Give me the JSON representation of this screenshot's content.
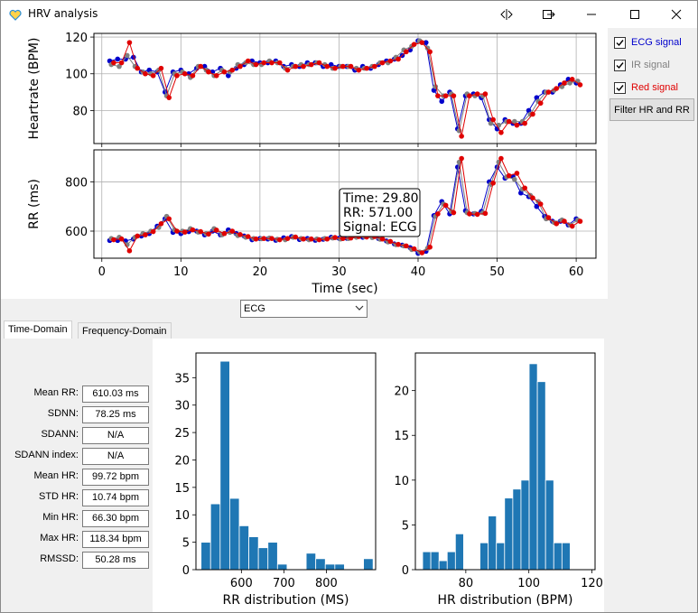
{
  "window": {
    "title": "HRV analysis"
  },
  "checkboxes": [
    {
      "label": "ECG signal",
      "checked": true,
      "color": "#0000cc"
    },
    {
      "label": "IR signal",
      "checked": true,
      "color": "#808080"
    },
    {
      "label": "Red signal",
      "checked": true,
      "color": "#e00000"
    }
  ],
  "filter_button": "Filter HR and RR",
  "signal_select": {
    "value": "ECG"
  },
  "tabs": [
    {
      "label": "Time-Domain",
      "active": true
    },
    {
      "label": "Frequency-Domain",
      "active": false
    }
  ],
  "stats": [
    {
      "label": "Mean RR:",
      "value": "610.03 ms"
    },
    {
      "label": "SDNN:",
      "value": "78.25 ms"
    },
    {
      "label": "SDANN:",
      "value": "N/A"
    },
    {
      "label": "SDANN index:",
      "value": "N/A"
    },
    {
      "label": "Mean HR:",
      "value": "99.72 bpm"
    },
    {
      "label": "STD HR:",
      "value": "10.74 bpm"
    },
    {
      "label": "Min HR:",
      "value": "66.30 bpm"
    },
    {
      "label": "Max HR:",
      "value": "118.34 bpm"
    },
    {
      "label": "RMSSD:",
      "value": "50.28 ms"
    }
  ],
  "tooltip": {
    "line1": "Time: 29.80",
    "line2": "RR: 571.00",
    "line3": "Signal: ECG"
  },
  "chart_data": [
    {
      "type": "scatter",
      "ylabel": "Heartrate (BPM)",
      "xlim": [
        -1,
        62.5
      ],
      "ylim": [
        62,
        122
      ],
      "yticks": [
        80,
        100,
        120
      ],
      "grid": true,
      "series": [
        {
          "name": "ECG signal",
          "color": "#0000cc",
          "x": [
            1,
            2,
            3,
            4,
            5,
            6,
            7,
            8,
            9,
            10,
            11,
            12,
            13,
            14,
            15,
            16,
            17,
            18,
            19,
            20,
            21,
            22,
            23,
            24,
            25,
            26,
            27,
            28,
            29,
            30,
            31,
            32,
            33,
            34,
            35,
            36,
            37,
            38,
            39,
            40,
            41,
            42,
            43,
            44,
            45,
            46,
            47,
            48,
            49,
            50,
            51,
            52,
            53,
            54,
            55,
            56,
            57,
            58,
            59,
            60
          ],
          "y": [
            107,
            108,
            108,
            109,
            101,
            102,
            101,
            90,
            101,
            102,
            100,
            103,
            104,
            101,
            103,
            99,
            103,
            105,
            107,
            106,
            106,
            107,
            104,
            105,
            104,
            106,
            106,
            104,
            105,
            104,
            104,
            102,
            104,
            103,
            105,
            107,
            108,
            110,
            113,
            118,
            117,
            91,
            85,
            90,
            70,
            88,
            89,
            87,
            75,
            70,
            75,
            73,
            73,
            80,
            87,
            90,
            90,
            94,
            97,
            95
          ]
        },
        {
          "name": "IR signal",
          "color": "#808080",
          "x": [
            1.2,
            2.2,
            3.2,
            4.2,
            5.2,
            6.2,
            7.2,
            8.2,
            9.2,
            10.2,
            11.2,
            12.2,
            13.2,
            14.2,
            15.2,
            16.2,
            17.2,
            18.2,
            19.2,
            20.2,
            21.2,
            22.2,
            23.2,
            24.2,
            25.2,
            26.2,
            27.2,
            28.2,
            29.2,
            30.2,
            31.2,
            32.2,
            33.2,
            34.2,
            35.2,
            36.2,
            37.2,
            38.2,
            39.2,
            40.2,
            41.2,
            42.2,
            43.2,
            44.2,
            45.2,
            46.2,
            47.2,
            48.2,
            49.2,
            50.2,
            51.2,
            52.2,
            53.2,
            54.2,
            55.2,
            56.2,
            57.2,
            58.2,
            59.2,
            60.2
          ],
          "y": [
            105,
            104,
            110,
            104,
            101,
            100,
            102,
            88,
            100,
            101,
            98,
            104,
            102,
            99,
            102,
            101,
            105,
            106,
            105,
            105,
            107,
            106,
            103,
            104,
            105,
            105,
            106,
            105,
            103,
            104,
            104,
            103,
            103,
            104,
            106,
            106,
            109,
            113,
            115,
            118,
            114,
            93,
            88,
            89,
            69,
            89,
            88,
            88,
            73,
            72,
            74,
            74,
            74,
            78,
            85,
            90,
            91,
            93,
            95,
            96
          ]
        },
        {
          "name": "Red signal",
          "color": "#e00000",
          "x": [
            1.5,
            2.5,
            3.5,
            4.5,
            5.5,
            6.5,
            7.5,
            8.5,
            9.5,
            10.5,
            11.5,
            12.5,
            13.5,
            14.5,
            15.5,
            16.5,
            17.5,
            18.5,
            19.5,
            20.5,
            21.5,
            22.5,
            23.5,
            24.5,
            25.5,
            26.5,
            27.5,
            28.5,
            29.5,
            30.5,
            31.5,
            32.5,
            33.5,
            34.5,
            35.5,
            36.5,
            37.5,
            38.5,
            39.5,
            40.5,
            41.5,
            42.5,
            43.5,
            44.5,
            45.5,
            46.5,
            47.5,
            48.5,
            49.5,
            50.5,
            51.5,
            52.5,
            53.5,
            54.5,
            55.5,
            56.5,
            57.5,
            58.5,
            59.5,
            60.5
          ],
          "y": [
            106,
            106,
            117,
            103,
            100,
            99,
            103,
            87,
            99,
            100,
            99,
            104,
            101,
            99,
            101,
            102,
            104,
            107,
            105,
            106,
            106,
            106,
            102,
            104,
            104,
            105,
            106,
            104,
            103,
            104,
            104,
            102,
            103,
            104,
            106,
            107,
            108,
            112,
            116,
            117,
            112,
            88,
            88,
            88,
            66,
            88,
            89,
            89,
            75,
            68,
            74,
            72,
            73,
            78,
            84,
            90,
            92,
            95,
            97,
            94
          ]
        }
      ]
    },
    {
      "type": "scatter",
      "xlabel": "Time (sec)",
      "ylabel": "RR (ms)",
      "xlim": [
        -1,
        62.5
      ],
      "ylim": [
        490,
        930
      ],
      "xticks": [
        0,
        10,
        20,
        30,
        40,
        50,
        60
      ],
      "yticks": [
        600,
        800
      ],
      "grid": true,
      "series": [
        {
          "name": "ECG signal",
          "color": "#0000cc",
          "x": [
            1,
            2,
            3,
            4,
            5,
            6,
            7,
            8,
            9,
            10,
            11,
            12,
            13,
            14,
            15,
            16,
            17,
            18,
            19,
            20,
            21,
            22,
            23,
            24,
            25,
            26,
            27,
            28,
            29,
            30,
            31,
            32,
            33,
            34,
            35,
            36,
            37,
            38,
            39,
            40,
            41,
            42,
            43,
            44,
            45,
            46,
            47,
            48,
            49,
            50,
            51,
            52,
            53,
            54,
            55,
            56,
            57,
            58,
            59,
            60
          ],
          "y": [
            562,
            562,
            560,
            568,
            580,
            590,
            620,
            650,
            595,
            590,
            598,
            600,
            585,
            600,
            585,
            605,
            590,
            580,
            565,
            570,
            568,
            563,
            573,
            578,
            566,
            570,
            563,
            567,
            575,
            571,
            571,
            580,
            575,
            582,
            570,
            560,
            548,
            543,
            533,
            510,
            518,
            663,
            720,
            670,
            860,
            683,
            670,
            680,
            800,
            860,
            815,
            822,
            755,
            740,
            700,
            660,
            640,
            640,
            625,
            650
          ]
        },
        {
          "name": "IR signal",
          "color": "#808080",
          "x": [
            1.2,
            2.2,
            3.2,
            4.2,
            5.2,
            6.2,
            7.2,
            8.2,
            9.2,
            10.2,
            11.2,
            12.2,
            13.2,
            14.2,
            15.2,
            16.2,
            17.2,
            18.2,
            19.2,
            20.2,
            21.2,
            22.2,
            23.2,
            24.2,
            25.2,
            26.2,
            27.2,
            28.2,
            29.2,
            30.2,
            31.2,
            32.2,
            33.2,
            34.2,
            35.2,
            36.2,
            37.2,
            38.2,
            39.2,
            40.2,
            41.2,
            42.2,
            43.2,
            44.2,
            45.2,
            46.2,
            47.2,
            48.2,
            49.2,
            50.2,
            51.2,
            52.2,
            53.2,
            54.2,
            55.2,
            56.2,
            57.2,
            58.2,
            59.2,
            60.2
          ],
          "y": [
            570,
            575,
            545,
            575,
            590,
            600,
            615,
            660,
            605,
            600,
            610,
            596,
            590,
            610,
            585,
            595,
            582,
            575,
            570,
            569,
            572,
            567,
            565,
            575,
            570,
            565,
            568,
            570,
            572,
            568,
            570,
            575,
            578,
            574,
            567,
            556,
            545,
            540,
            525,
            515,
            530,
            660,
            710,
            680,
            880,
            675,
            672,
            675,
            790,
            880,
            820,
            810,
            770,
            745,
            720,
            650,
            635,
            645,
            625,
            645
          ]
        },
        {
          "name": "Red signal",
          "color": "#e00000",
          "x": [
            1.5,
            2.5,
            3.5,
            4.5,
            5.5,
            6.5,
            7.5,
            8.5,
            9.5,
            10.5,
            11.5,
            12.5,
            13.5,
            14.5,
            15.5,
            16.5,
            17.5,
            18.5,
            19.5,
            20.5,
            21.5,
            22.5,
            23.5,
            24.5,
            25.5,
            26.5,
            27.5,
            28.5,
            29.5,
            30.5,
            31.5,
            32.5,
            33.5,
            34.5,
            35.5,
            36.5,
            37.5,
            38.5,
            39.5,
            40.5,
            41.5,
            42.5,
            43.5,
            44.5,
            45.5,
            46.5,
            47.5,
            48.5,
            49.5,
            50.5,
            51.5,
            52.5,
            53.5,
            54.5,
            55.5,
            56.5,
            57.5,
            58.5,
            59.5,
            60.5
          ],
          "y": [
            565,
            568,
            520,
            580,
            585,
            598,
            630,
            650,
            600,
            596,
            605,
            598,
            588,
            604,
            590,
            600,
            586,
            578,
            568,
            570,
            570,
            565,
            570,
            576,
            568,
            568,
            565,
            568,
            574,
            570,
            572,
            578,
            576,
            578,
            568,
            558,
            546,
            540,
            528,
            512,
            535,
            670,
            705,
            675,
            895,
            670,
            668,
            672,
            795,
            895,
            825,
            835,
            775,
            735,
            710,
            655,
            630,
            640,
            620,
            640
          ]
        }
      ]
    },
    {
      "type": "bar",
      "xlabel": "RR distribution (MS)",
      "xlim": [
        493,
        916
      ],
      "ylim": [
        0,
        39.5
      ],
      "xticks": [
        600,
        700,
        800
      ],
      "yticks": [
        0,
        5,
        10,
        15,
        20,
        25,
        30,
        35
      ],
      "bin_width": 22.5,
      "bin_starts": [
        505,
        527.5,
        550,
        572.5,
        595,
        617.5,
        640,
        662.5,
        685,
        707.5,
        730,
        752.5,
        775,
        797.5,
        820,
        842.5,
        865,
        887.5
      ],
      "values": [
        5,
        12,
        38,
        13,
        8,
        6,
        4,
        5,
        1,
        0,
        0,
        3,
        2,
        1,
        1,
        0,
        0,
        2
      ]
    },
    {
      "type": "bar",
      "xlabel": "HR distribution (BPM)",
      "xlim": [
        64,
        121
      ],
      "ylim": [
        0,
        24.2
      ],
      "xticks": [
        80,
        100,
        120
      ],
      "yticks": [
        0,
        5,
        10,
        15,
        20
      ],
      "bin_width": 2.6,
      "bin_starts": [
        66.3,
        68.9,
        71.5,
        74.1,
        76.7,
        79.3,
        81.9,
        84.5,
        87.1,
        89.7,
        92.3,
        94.9,
        97.5,
        100.1,
        102.7,
        105.3,
        107.9,
        110.5,
        113.1,
        115.7
      ],
      "values": [
        2,
        2,
        1,
        2,
        4,
        0,
        0,
        3,
        6,
        3,
        8,
        9,
        10,
        23,
        21,
        10,
        3,
        3,
        0,
        0
      ]
    }
  ]
}
